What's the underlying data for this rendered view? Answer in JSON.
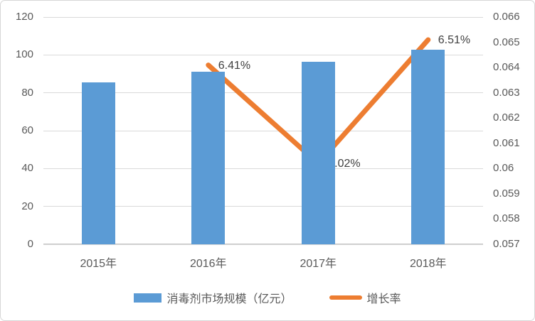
{
  "chart_data": {
    "type": "bar",
    "subtype": "combo-bar-line",
    "title": "",
    "categories": [
      "2015年",
      "2016年",
      "2017年",
      "2018年"
    ],
    "series": [
      {
        "name": "消毒剂市场规模（亿元）",
        "type": "bar",
        "axis": "left",
        "color": "#5b9bd5",
        "values": [
          85.5,
          91,
          96.5,
          102.8
        ]
      },
      {
        "name": "增长率",
        "type": "line",
        "axis": "right",
        "color": "#ed7d31",
        "values": [
          null,
          0.0641,
          0.0602,
          0.0651
        ],
        "point_labels": [
          "",
          "6.41%",
          "6.02%",
          "6.51%"
        ]
      }
    ],
    "left_axis": {
      "min": 0,
      "max": 120,
      "ticks": [
        "120",
        "100",
        "80",
        "60",
        "40",
        "20",
        "0"
      ]
    },
    "right_axis": {
      "min": 0.057,
      "max": 0.066,
      "ticks": [
        "0.066",
        "0.065",
        "0.064",
        "0.063",
        "0.062",
        "0.061",
        "0.06",
        "0.059",
        "0.058",
        "0.057"
      ]
    },
    "grid": true,
    "legend_position": "bottom"
  },
  "colors": {
    "bar": "#5b9bd5",
    "line": "#ed7d31",
    "gridline": "#d9d9d9",
    "axis_text": "#595959",
    "data_label_text": "#404040",
    "chart_border": "#d7d7d7"
  }
}
